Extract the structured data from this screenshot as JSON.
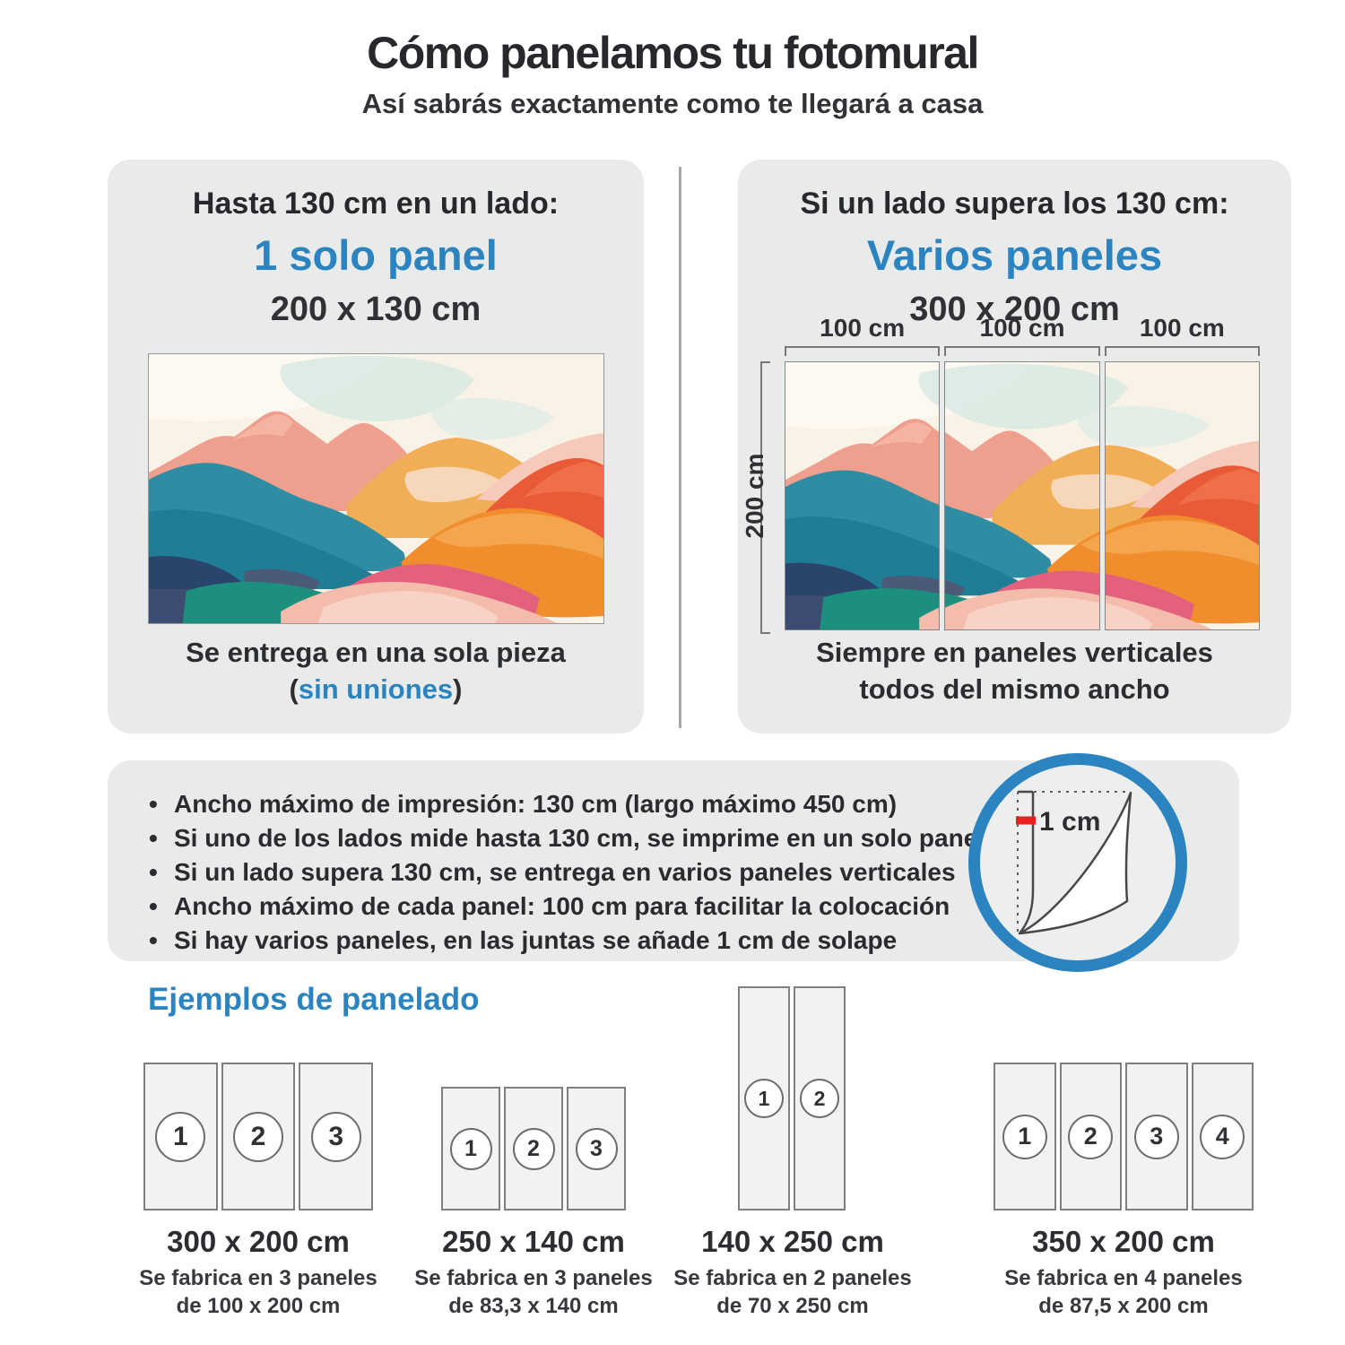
{
  "header": {
    "title": "Cómo panelamos tu fotomural",
    "subtitle": "Así sabrás exactamente como te llegará a casa"
  },
  "left_card": {
    "condition": "Hasta 130 cm en un lado:",
    "result": "1 solo panel",
    "size": "200 x 130 cm",
    "caption_line1": "Se entrega en una sola pieza",
    "caption_paren_open": "(",
    "caption_highlight": "sin uniones",
    "caption_paren_close": ")"
  },
  "right_card": {
    "condition": "Si un lado supera los 130 cm:",
    "result": "Varios paneles",
    "size": "300 x 200 cm",
    "width_labels": [
      "100 cm",
      "100 cm",
      "100 cm"
    ],
    "height_label": "200 cm",
    "caption_line1": "Siempre en paneles verticales",
    "caption_line2": "todos del mismo ancho"
  },
  "notes": {
    "bullets": [
      "Ancho máximo de impresión: 130 cm (largo máximo 450 cm)",
      "Si uno de los lados mide hasta 130 cm, se imprime en un solo panel",
      "Si un lado supera 130 cm, se entrega en varios paneles verticales",
      "Ancho máximo de cada panel: 100 cm para facilitar la colocación",
      "Si hay varios paneles, en las juntas se añade 1 cm de solape"
    ],
    "overlap_label": "1 cm"
  },
  "examples": {
    "heading": "Ejemplos de panelado",
    "items": [
      {
        "size": "300 x 200 cm",
        "line1": "Se fabrica en 3 paneles",
        "line2": "de 100 x 200 cm",
        "panels": [
          "1",
          "2",
          "3"
        ]
      },
      {
        "size": "250 x 140 cm",
        "line1": "Se fabrica en 3 paneles",
        "line2": "de 83,3 x 140 cm",
        "panels": [
          "1",
          "2",
          "3"
        ]
      },
      {
        "size": "140 x 250 cm",
        "line1": "Se fabrica en 2 paneles",
        "line2": "de 70 x 250 cm",
        "panels": [
          "1",
          "2"
        ]
      },
      {
        "size": "350 x 200 cm",
        "line1": "Se fabrica en 4 paneles",
        "line2": "de 87,5 x 200 cm",
        "panels": [
          "1",
          "2",
          "3",
          "4"
        ]
      }
    ]
  },
  "colors": {
    "accent_blue": "#2b84bf",
    "overlap_red": "#e8201e",
    "card_bg": "#e9eaea"
  }
}
